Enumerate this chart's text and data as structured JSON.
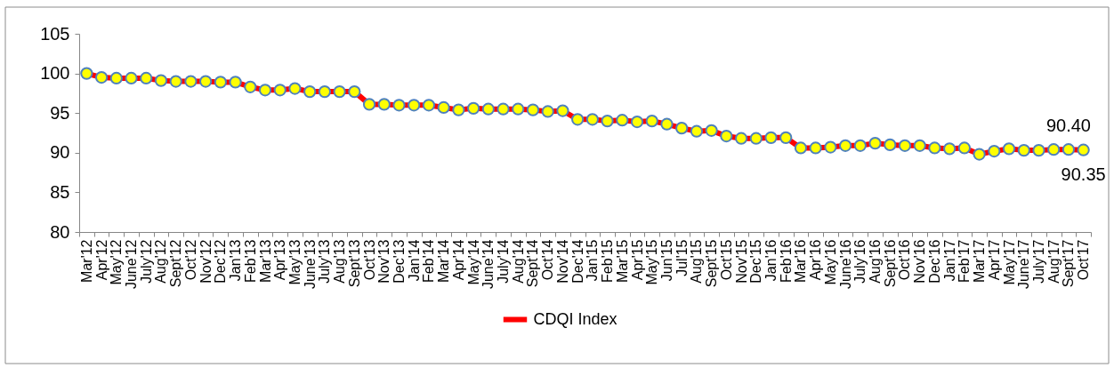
{
  "chart_data": {
    "type": "line",
    "categories": [
      "Mar'12",
      "Apr'12",
      "May'12",
      "June'12",
      "July'12",
      "Aug'12",
      "Sept'12",
      "Oct'12",
      "Nov'12",
      "Dec'12",
      "Jan'13",
      "Feb'13",
      "Mar'13",
      "Apr'13",
      "May'13",
      "June'13",
      "July'13",
      "Aug'13",
      "Sept'13",
      "Oct'13",
      "Nov'13",
      "Dec'13",
      "Jan'14",
      "Feb'14",
      "Mar'14",
      "Apr'14",
      "May'14",
      "June'14",
      "July'14",
      "Aug'14",
      "Sept'14",
      "Oct'14",
      "Nov'14",
      "Dec'14",
      "Jan'15",
      "Feb'15",
      "Mar'15",
      "Apr'15",
      "May'15",
      "Jun'15",
      "Jul'15",
      "Aug'15",
      "Sept'15",
      "Oct'15",
      "Nov'15",
      "Dec'15",
      "Jan'16",
      "Feb'16",
      "Mar'16",
      "Apr'16",
      "May'16",
      "June'16",
      "July'16",
      "Aug'16",
      "Sept'16",
      "Oct'16",
      "Nov'16",
      "Dec'16",
      "Jan'17",
      "Feb'17",
      "Mar'17",
      "Apr'17",
      "May'17",
      "June'17",
      "July'17",
      "Aug'17",
      "Sept'17",
      "Oct'17"
    ],
    "series": [
      {
        "name": "CDQI Index",
        "color": "#ff0000",
        "colors": [
          "#ffff00",
          "#ffff00",
          "#ffff00",
          "#ffff00",
          "#ffff00",
          "#ffff00",
          "#ffff00",
          "#ffff00",
          "#ffff00",
          "#ffff00",
          "#ffff00",
          "#ffff00",
          "#ffff00",
          "#ffff00",
          "#ffff00",
          "#ffff00",
          "#ffff00",
          "#ffff00",
          "#ffff00",
          "#ffff00",
          "#ffff00",
          "#ffff00",
          "#ffff00",
          "#ffff00",
          "#ffff00",
          "#ffff00",
          "#ffff00",
          "#ffff00",
          "#ffff00",
          "#ffff00",
          "#ffff00",
          "#ffff00",
          "#ffff00",
          "#ffff00",
          "#ffff00",
          "#ffff00",
          "#ffff00",
          "#ffff00",
          "#ffff00",
          "#ffff00",
          "#ffff00",
          "#ffff00",
          "#ffff00",
          "#ffff00",
          "#ffff00",
          "#ffff00",
          "#ffff00",
          "#ffff00",
          "#ffff00",
          "#ffff00",
          "#ffff00",
          "#ffff00",
          "#ffff00",
          "#ffff00",
          "#ffff00",
          "#ffff00",
          "#ffff00",
          "#ffff00",
          "#ffff00",
          "#ffff00",
          "#ffff00",
          "#ffff00",
          "#ffff00",
          "#ffff00",
          "#ffff00",
          "#ffff00",
          "#ffff00",
          "#ffff00"
        ],
        "values": [
          100.0,
          99.5,
          99.4,
          99.4,
          99.4,
          99.1,
          99.0,
          99.0,
          99.0,
          98.9,
          98.9,
          98.3,
          97.9,
          97.9,
          98.1,
          97.7,
          97.7,
          97.7,
          97.7,
          96.1,
          96.1,
          96.0,
          96.0,
          96.0,
          95.7,
          95.4,
          95.6,
          95.5,
          95.5,
          95.5,
          95.4,
          95.2,
          95.3,
          94.2,
          94.2,
          94.0,
          94.1,
          93.9,
          94.0,
          93.6,
          93.1,
          92.7,
          92.8,
          92.1,
          91.8,
          91.8,
          91.9,
          91.9,
          90.6,
          90.6,
          90.7,
          90.9,
          90.9,
          91.2,
          91.0,
          90.9,
          90.9,
          90.6,
          90.5,
          90.6,
          89.8,
          90.2,
          90.5,
          90.3,
          90.3,
          90.4,
          90.4,
          90.35
        ],
        "value_labels": [
          null,
          null,
          null,
          null,
          null,
          null,
          null,
          null,
          null,
          null,
          null,
          null,
          null,
          null,
          null,
          null,
          null,
          null,
          null,
          null,
          null,
          null,
          null,
          null,
          null,
          null,
          null,
          null,
          null,
          null,
          null,
          null,
          null,
          null,
          null,
          null,
          null,
          null,
          null,
          null,
          null,
          null,
          null,
          null,
          null,
          null,
          null,
          null,
          null,
          null,
          null,
          null,
          null,
          null,
          null,
          null,
          null,
          null,
          null,
          null,
          null,
          null,
          null,
          null,
          null,
          null,
          "90.40",
          "90.35"
        ]
      }
    ],
    "ylim": [
      80,
      105
    ],
    "yticks": [
      80,
      85,
      90,
      95,
      100,
      105
    ],
    "grid": false,
    "legend": "bottom",
    "marker": "circle",
    "line_style": "solid"
  }
}
